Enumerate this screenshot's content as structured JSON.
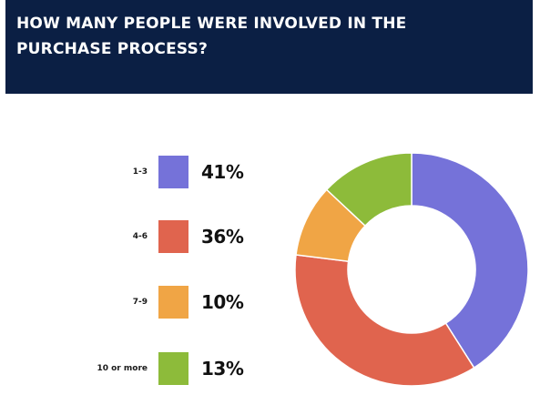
{
  "header": {
    "title": "How many people were involved in the purchase process?"
  },
  "colors": {
    "header_bg": "#0b1f44",
    "slice_1": "#7572d9",
    "slice_2": "#e0644e",
    "slice_3": "#f0a545",
    "slice_4": "#8dbb3a"
  },
  "chart_data": {
    "type": "pie",
    "style": "donut",
    "title": "How many people were involved in the purchase process?",
    "categories": [
      "1-3",
      "4-6",
      "7-9",
      "10 or more"
    ],
    "values": [
      41,
      36,
      10,
      13
    ],
    "value_labels": [
      "41%",
      "36%",
      "10%",
      "13%"
    ],
    "unit": "%",
    "colors": [
      "#7572d9",
      "#e0644e",
      "#f0a545",
      "#8dbb3a"
    ],
    "legend_position": "left"
  }
}
